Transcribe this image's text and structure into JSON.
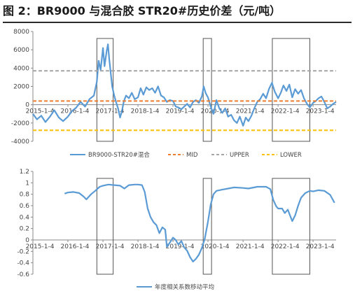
{
  "header": {
    "title": "图 2：BR9000 与混合胶 STR20#历史价差（元/吨）"
  },
  "chart_data": [
    {
      "type": "line",
      "title": "",
      "xlabel": "",
      "ylabel": "",
      "ylim": [
        -4000,
        8000
      ],
      "y_ticks": [
        -4000,
        -2000,
        0,
        2000,
        4000,
        6000,
        8000
      ],
      "x_ticks": [
        "2015-1-4",
        "2016-1-4",
        "2017-1-4",
        "2018-1-4",
        "2019-1-4",
        "2020-1-4",
        "2021-1-4",
        "2022-1-4",
        "2023-1-4"
      ],
      "x_tick_dates": [
        "2015-01-04",
        "2016-01-04",
        "2017-01-04",
        "2018-01-04",
        "2019-01-04",
        "2020-01-04",
        "2021-01-04",
        "2022-01-04",
        "2023-01-04"
      ],
      "xlim": [
        "2015-01-04",
        "2023-09-01"
      ],
      "grid": false,
      "legend": "bottom",
      "series": [
        {
          "name": "BR9000-STR20#混合",
          "color": "#5b9bd5",
          "style": "solid",
          "points": [
            [
              "2015-01-04",
              -1000
            ],
            [
              "2015-02-15",
              -1600
            ],
            [
              "2015-04-01",
              -1200
            ],
            [
              "2015-05-15",
              -1900
            ],
            [
              "2015-07-01",
              -1300
            ],
            [
              "2015-08-15",
              -600
            ],
            [
              "2015-10-01",
              -1400
            ],
            [
              "2015-11-15",
              -1800
            ],
            [
              "2016-01-04",
              -1300
            ],
            [
              "2016-02-15",
              -700
            ],
            [
              "2016-04-01",
              -300
            ],
            [
              "2016-05-15",
              300
            ],
            [
              "2016-07-01",
              -200
            ],
            [
              "2016-08-15",
              600
            ],
            [
              "2016-10-01",
              1000
            ],
            [
              "2016-11-01",
              2500
            ],
            [
              "2016-11-20",
              4800
            ],
            [
              "2016-12-10",
              3800
            ],
            [
              "2017-01-04",
              6200
            ],
            [
              "2017-01-20",
              4200
            ],
            [
              "2017-02-10",
              5800
            ],
            [
              "2017-02-25",
              6600
            ],
            [
              "2017-03-10",
              5000
            ],
            [
              "2017-03-25",
              3500
            ],
            [
              "2017-04-10",
              2000
            ],
            [
              "2017-05-01",
              1000
            ],
            [
              "2017-05-20",
              300
            ],
            [
              "2017-06-10",
              -400
            ],
            [
              "2017-07-01",
              -1400
            ],
            [
              "2017-07-20",
              -700
            ],
            [
              "2017-08-10",
              400
            ],
            [
              "2017-09-01",
              1000
            ],
            [
              "2017-10-01",
              700
            ],
            [
              "2017-11-01",
              1300
            ],
            [
              "2017-12-01",
              600
            ],
            [
              "2018-01-04",
              800
            ],
            [
              "2018-02-01",
              1800
            ],
            [
              "2018-03-01",
              1100
            ],
            [
              "2018-04-01",
              1900
            ],
            [
              "2018-05-01",
              1600
            ],
            [
              "2018-06-01",
              1800
            ],
            [
              "2018-07-01",
              1300
            ],
            [
              "2018-08-01",
              2000
            ],
            [
              "2018-09-01",
              1000
            ],
            [
              "2018-10-01",
              800
            ],
            [
              "2018-11-01",
              300
            ],
            [
              "2018-12-01",
              500
            ],
            [
              "2019-01-04",
              400
            ],
            [
              "2019-02-01",
              -200
            ],
            [
              "2019-03-01",
              -300
            ],
            [
              "2019-04-01",
              -500
            ],
            [
              "2019-05-01",
              -200
            ],
            [
              "2019-06-01",
              100
            ],
            [
              "2019-07-01",
              -300
            ],
            [
              "2019-08-01",
              300
            ],
            [
              "2019-09-01",
              500
            ],
            [
              "2019-10-01",
              200
            ],
            [
              "2019-11-01",
              900
            ],
            [
              "2019-11-20",
              2000
            ],
            [
              "2019-12-10",
              1300
            ],
            [
              "2020-01-04",
              800
            ],
            [
              "2020-02-01",
              -200
            ],
            [
              "2020-03-01",
              -1000
            ],
            [
              "2020-04-01",
              500
            ],
            [
              "2020-05-01",
              -400
            ],
            [
              "2020-06-01",
              -900
            ],
            [
              "2020-07-01",
              -400
            ],
            [
              "2020-08-01",
              -1300
            ],
            [
              "2020-09-01",
              -1100
            ],
            [
              "2020-10-01",
              -1700
            ],
            [
              "2020-11-01",
              -2000
            ],
            [
              "2020-12-01",
              -1300
            ],
            [
              "2021-01-04",
              -2300
            ],
            [
              "2021-02-01",
              -1400
            ],
            [
              "2021-03-01",
              -1800
            ],
            [
              "2021-04-01",
              -1200
            ],
            [
              "2021-05-01",
              -400
            ],
            [
              "2021-06-01",
              300
            ],
            [
              "2021-07-01",
              600
            ],
            [
              "2021-08-01",
              1200
            ],
            [
              "2021-09-01",
              700
            ],
            [
              "2021-10-01",
              1700
            ],
            [
              "2021-11-01",
              2400
            ],
            [
              "2021-12-01",
              1400
            ],
            [
              "2022-01-04",
              700
            ],
            [
              "2022-02-01",
              1300
            ],
            [
              "2022-03-01",
              2100
            ],
            [
              "2022-04-01",
              1500
            ],
            [
              "2022-05-01",
              2200
            ],
            [
              "2022-06-01",
              800
            ],
            [
              "2022-07-01",
              1700
            ],
            [
              "2022-08-01",
              1200
            ],
            [
              "2022-09-01",
              1600
            ],
            [
              "2022-10-01",
              700
            ],
            [
              "2022-11-01",
              100
            ],
            [
              "2022-12-01",
              -300
            ],
            [
              "2023-01-04",
              200
            ],
            [
              "2023-02-01",
              400
            ],
            [
              "2023-03-01",
              700
            ],
            [
              "2023-04-01",
              900
            ],
            [
              "2023-05-01",
              300
            ],
            [
              "2023-06-01",
              -400
            ],
            [
              "2023-07-01",
              -200
            ],
            [
              "2023-08-01",
              100
            ],
            [
              "2023-09-01",
              300
            ]
          ]
        },
        {
          "name": "MID",
          "color": "#ed7d31",
          "style": "dashed",
          "value": 400
        },
        {
          "name": "UPPER",
          "color": "#a5a5a5",
          "style": "dashed",
          "value": 3700
        },
        {
          "name": "LOWER",
          "color": "#ffc000",
          "style": "dashed",
          "value": -2800
        }
      ]
    },
    {
      "type": "line",
      "title": "",
      "xlabel": "",
      "ylabel": "",
      "ylim": [
        -0.6,
        1.2
      ],
      "y_ticks": [
        -0.6,
        -0.4,
        -0.2,
        0,
        0.2,
        0.4,
        0.6,
        0.8,
        1.0,
        1.2
      ],
      "y_tick_labels": [
        "-0.6",
        "-0.4",
        "-0.2",
        "0",
        "0.2",
        "0.4",
        "0.6",
        "0.8",
        "1",
        "1.2"
      ],
      "x_ticks": [
        "2015-1-4",
        "2016-1-4",
        "2017-1-4",
        "2018-1-4",
        "2019-1-4",
        "2020-1-4",
        "2021-1-4",
        "2022-1-4",
        "2023-1-4"
      ],
      "x_tick_dates": [
        "2015-01-04",
        "2016-01-04",
        "2017-01-04",
        "2018-01-04",
        "2019-01-04",
        "2020-01-04",
        "2021-01-04",
        "2022-01-04",
        "2023-01-04"
      ],
      "xlim": [
        "2015-01-04",
        "2023-09-01"
      ],
      "grid": false,
      "legend": "bottom",
      "series": [
        {
          "name": "年度相关系数移动平均",
          "color": "#5b9bd5",
          "style": "solid",
          "points": [
            [
              "2015-12-01",
              0.81
            ],
            [
              "2016-01-04",
              0.83
            ],
            [
              "2016-03-01",
              0.84
            ],
            [
              "2016-05-01",
              0.82
            ],
            [
              "2016-06-15",
              0.76
            ],
            [
              "2016-07-15",
              0.71
            ],
            [
              "2016-09-01",
              0.8
            ],
            [
              "2016-10-15",
              0.86
            ],
            [
              "2016-12-01",
              0.93
            ],
            [
              "2017-01-04",
              0.95
            ],
            [
              "2017-03-01",
              0.97
            ],
            [
              "2017-05-01",
              0.96
            ],
            [
              "2017-07-01",
              0.95
            ],
            [
              "2017-08-15",
              0.9
            ],
            [
              "2017-10-01",
              0.96
            ],
            [
              "2017-12-01",
              0.97
            ],
            [
              "2018-01-04",
              0.97
            ],
            [
              "2018-02-15",
              0.96
            ],
            [
              "2018-03-15",
              0.84
            ],
            [
              "2018-04-15",
              0.55
            ],
            [
              "2018-05-15",
              0.4
            ],
            [
              "2018-06-15",
              0.31
            ],
            [
              "2018-07-15",
              0.26
            ],
            [
              "2018-08-15",
              0.12
            ],
            [
              "2018-09-15",
              0.22
            ],
            [
              "2018-10-15",
              0.18
            ],
            [
              "2018-11-01",
              -0.12
            ],
            [
              "2018-12-01",
              -0.05
            ],
            [
              "2019-01-04",
              0.04
            ],
            [
              "2019-02-01",
              0.0
            ],
            [
              "2019-03-01",
              -0.08
            ],
            [
              "2019-04-01",
              -0.02
            ],
            [
              "2019-05-01",
              -0.13
            ],
            [
              "2019-06-01",
              -0.19
            ],
            [
              "2019-07-01",
              -0.3
            ],
            [
              "2019-08-01",
              -0.38
            ],
            [
              "2019-09-01",
              -0.33
            ],
            [
              "2019-10-01",
              -0.26
            ],
            [
              "2019-11-01",
              -0.14
            ],
            [
              "2019-12-01",
              0.02
            ],
            [
              "2020-01-04",
              0.32
            ],
            [
              "2020-02-01",
              0.62
            ],
            [
              "2020-03-01",
              0.8
            ],
            [
              "2020-04-01",
              0.86
            ],
            [
              "2020-06-01",
              0.88
            ],
            [
              "2020-08-01",
              0.9
            ],
            [
              "2020-10-01",
              0.92
            ],
            [
              "2021-01-04",
              0.91
            ],
            [
              "2021-03-01",
              0.9
            ],
            [
              "2021-06-01",
              0.93
            ],
            [
              "2021-09-01",
              0.93
            ],
            [
              "2021-10-15",
              0.89
            ],
            [
              "2021-11-15",
              0.7
            ],
            [
              "2021-12-15",
              0.59
            ],
            [
              "2022-01-04",
              0.55
            ],
            [
              "2022-02-15",
              0.55
            ],
            [
              "2022-03-15",
              0.47
            ],
            [
              "2022-04-15",
              0.53
            ],
            [
              "2022-06-01",
              0.33
            ],
            [
              "2022-07-01",
              0.43
            ],
            [
              "2022-08-01",
              0.6
            ],
            [
              "2022-09-01",
              0.74
            ],
            [
              "2022-10-15",
              0.82
            ],
            [
              "2022-12-01",
              0.86
            ],
            [
              "2023-01-04",
              0.85
            ],
            [
              "2023-03-01",
              0.87
            ],
            [
              "2023-05-01",
              0.86
            ],
            [
              "2023-07-01",
              0.79
            ],
            [
              "2023-08-15",
              0.65
            ]
          ]
        }
      ]
    }
  ]
}
